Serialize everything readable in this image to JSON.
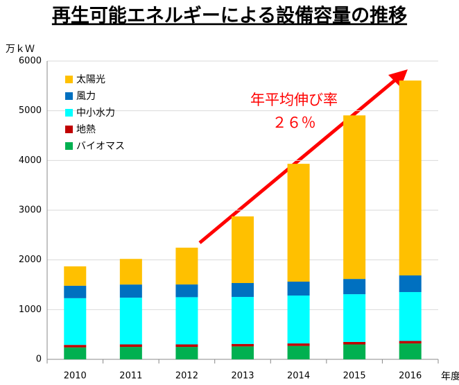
{
  "chart_data": {
    "type": "stacked_bar",
    "title": "再生可能エネルギーによる設備容量の推移",
    "y_label": "万ｋＷ",
    "x_label": "年度",
    "annotation": [
      "年平均伸び率",
      "２６％"
    ],
    "categories": [
      "2010",
      "2011",
      "2012",
      "2013",
      "2014",
      "2015",
      "2016"
    ],
    "series": [
      {
        "name": "太陽光",
        "color": "#ffc000",
        "values": [
          390,
          515,
          740,
          1340,
          2370,
          3290,
          3920
        ]
      },
      {
        "name": "風力",
        "color": "#0070c0",
        "values": [
          250,
          265,
          256,
          280,
          280,
          307,
          335
        ]
      },
      {
        "name": "中小水力",
        "color": "#00ffff",
        "values": [
          940,
          940,
          950,
          945,
          963,
          960,
          983
        ]
      },
      {
        "name": "地熱",
        "color": "#c00000",
        "values": [
          50,
          50,
          50,
          50,
          50,
          50,
          50
        ]
      },
      {
        "name": "バイオマス",
        "color": "#00b050",
        "values": [
          240,
          250,
          250,
          260,
          270,
          300,
          320
        ]
      }
    ],
    "ylim": [
      0,
      6000
    ],
    "yticks": [
      0,
      1000,
      2000,
      3000,
      4000,
      5000,
      6000
    ],
    "grid": true
  }
}
